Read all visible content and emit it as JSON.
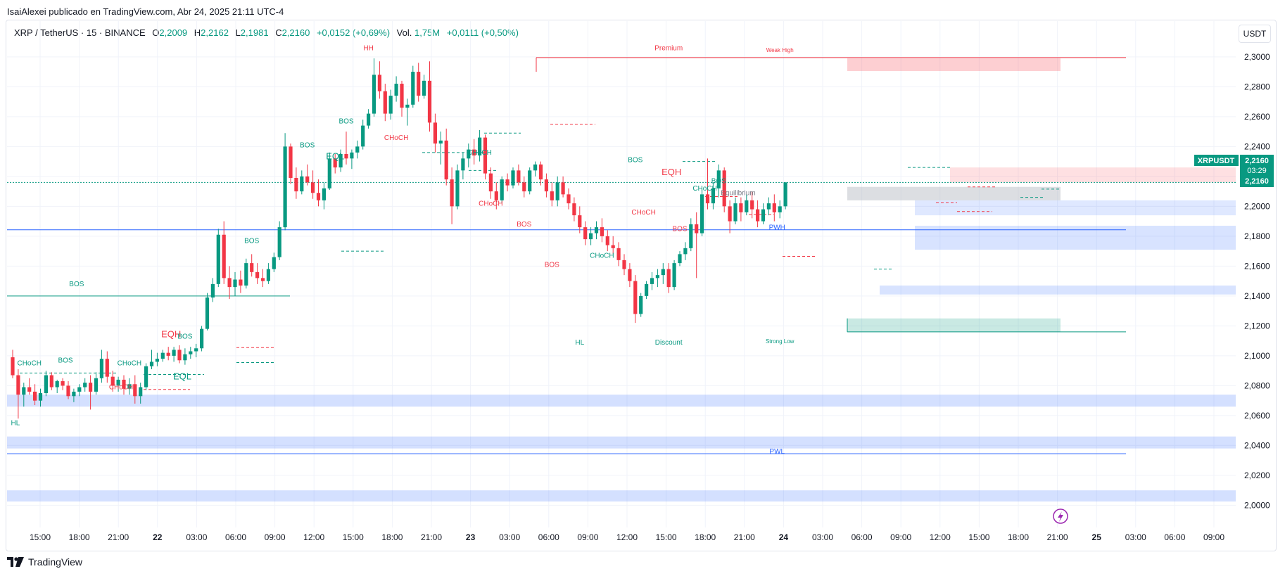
{
  "header": {
    "title": "IsaiAlexei publicado en TradingView.com, Abr 24, 2025 21:11 UTC-4"
  },
  "legend": {
    "symbol": "XRP / TetherUS · 15 · BINANCE",
    "o_label": "O",
    "o": "2,2009",
    "h_label": "H",
    "h": "2,2162",
    "l_label": "L",
    "l": "2,1981",
    "c_label": "C",
    "c": "2,2160",
    "change": "+0,0152 (+0,69%)",
    "vol_label": "Vol.",
    "vol": "1,75M",
    "vol_change": "+0,0111 (+0,50%)"
  },
  "currency_button": "USDT",
  "price_tag": {
    "symbol": "XRPUSDT",
    "price": "2,2160",
    "countdown": "03:29",
    "price2": "2,2160"
  },
  "brand": "TradingView",
  "colors": {
    "up": "#089981",
    "down": "#f23645",
    "blue": "#2962ff",
    "grid": "#f0f3fa"
  },
  "chart_data": {
    "type": "candlestick",
    "y_ticks": [
      "2,3000",
      "2,2800",
      "2,2600",
      "2,2400",
      "2,2200",
      "2,2000",
      "2,1800",
      "2,1600",
      "2,1400",
      "2,1200",
      "2,1000",
      "2,0800",
      "2,0600",
      "2,0400",
      "2,0200",
      "2,0000"
    ],
    "y_tick_values": [
      2.3,
      2.28,
      2.26,
      2.24,
      2.22,
      2.2,
      2.18,
      2.16,
      2.14,
      2.12,
      2.1,
      2.08,
      2.06,
      2.04,
      2.02,
      2.0
    ],
    "ylim": [
      1.9875,
      2.3145
    ],
    "x_ticks": [
      "15:00",
      "18:00",
      "21:00",
      "22",
      "03:00",
      "06:00",
      "09:00",
      "12:00",
      "15:00",
      "18:00",
      "21:00",
      "23",
      "03:00",
      "06:00",
      "09:00",
      "12:00",
      "15:00",
      "18:00",
      "21:00",
      "24",
      "03:00",
      "06:00",
      "09:00",
      "12:00",
      "15:00",
      "18:00",
      "21:00",
      "25",
      "03:00",
      "06:00",
      "09:00"
    ],
    "x_tick_bold": [
      "22",
      "23",
      "24",
      "25"
    ],
    "annotations": [
      {
        "text": "HH",
        "color": "down",
        "xi": 64,
        "y": 2.3045
      },
      {
        "text": "Premium",
        "color": "down",
        "xi": 118,
        "y": 2.3045
      },
      {
        "text": "Weak High",
        "color": "down",
        "xi": 138,
        "y": 2.3032,
        "small": true
      },
      {
        "text": "BOS",
        "color": "up",
        "xi": 11.5,
        "y": 2.1465
      },
      {
        "text": "CHoCH",
        "color": "up",
        "xi": 3,
        "y": 2.0935
      },
      {
        "text": "BOS",
        "color": "up",
        "xi": 9.5,
        "y": 2.0955
      },
      {
        "text": "CHoCH",
        "color": "up",
        "xi": 21,
        "y": 2.0935
      },
      {
        "text": "CHoCH",
        "color": "down",
        "xi": 19.5,
        "y": 2.0775
      },
      {
        "text": "EQH",
        "color": "down",
        "xi": 28.5,
        "y": 2.1125,
        "big": true
      },
      {
        "text": "BOS",
        "color": "up",
        "xi": 31,
        "y": 2.1115
      },
      {
        "text": "EQL",
        "color": "up",
        "xi": 30.5,
        "y": 2.0842,
        "big": true
      },
      {
        "text": "BOS",
        "color": "up",
        "xi": 43,
        "y": 2.1755
      },
      {
        "text": "BOS",
        "color": "up",
        "xi": 53,
        "y": 2.2395
      },
      {
        "text": "BOS",
        "color": "up",
        "xi": 60,
        "y": 2.2555
      },
      {
        "text": "EQL",
        "color": "up",
        "xi": 58,
        "y": 2.2315,
        "big": true
      },
      {
        "text": "CHoCH",
        "color": "down",
        "xi": 69,
        "y": 2.2445
      },
      {
        "text": "CHoCH",
        "color": "up",
        "xi": 84,
        "y": 2.2345
      },
      {
        "text": "CHoCH",
        "color": "down",
        "xi": 86,
        "y": 2.2005
      },
      {
        "text": "BOS",
        "color": "down",
        "xi": 92,
        "y": 2.1865
      },
      {
        "text": "BOS",
        "color": "down",
        "xi": 97,
        "y": 2.1595
      },
      {
        "text": "CHoCH",
        "color": "up",
        "xi": 106,
        "y": 2.1655
      },
      {
        "text": "HL",
        "color": "up",
        "xi": 102,
        "y": 2.1075
      },
      {
        "text": "Discount",
        "color": "up",
        "xi": 118,
        "y": 2.1075
      },
      {
        "text": "Strong Low",
        "color": "up",
        "xi": 138,
        "y": 2.1085,
        "small": true
      },
      {
        "text": "HL",
        "color": "up",
        "xi": 0.5,
        "y": 2.0535
      },
      {
        "text": "BOS",
        "color": "up",
        "xi": 112,
        "y": 2.2295
      },
      {
        "text": "EQH",
        "color": "down",
        "xi": 118.5,
        "y": 2.2208,
        "big": true
      },
      {
        "text": "CHoCH",
        "color": "down",
        "xi": 113.5,
        "y": 2.1945
      },
      {
        "text": "BOS",
        "color": "down",
        "xi": 120,
        "y": 2.1835
      },
      {
        "text": "CHoCH",
        "color": "up",
        "xi": 124.5,
        "y": 2.2105
      },
      {
        "text": "BOS",
        "color": "up",
        "xi": 127,
        "y": 2.2155
      },
      {
        "text": "Equilibrium",
        "color": "grey",
        "xi": 130.5,
        "y": 2.2075
      },
      {
        "text": "PWH",
        "color": "blue",
        "xi": 137.5,
        "y": 2.1845
      },
      {
        "text": "PWL",
        "color": "blue",
        "xi": 137.5,
        "y": 2.0345
      }
    ],
    "candles": [
      [
        2.099,
        2.104,
        2.085,
        2.087
      ],
      [
        2.087,
        2.091,
        2.058,
        2.074
      ],
      [
        2.074,
        2.082,
        2.066,
        2.079
      ],
      [
        2.079,
        2.085,
        2.074,
        2.076
      ],
      [
        2.076,
        2.081,
        2.067,
        2.07
      ],
      [
        2.07,
        2.078,
        2.066,
        2.075
      ],
      [
        2.075,
        2.09,
        2.073,
        2.087
      ],
      [
        2.087,
        2.089,
        2.077,
        2.079
      ],
      [
        2.079,
        2.084,
        2.075,
        2.083
      ],
      [
        2.083,
        2.085,
        2.077,
        2.08
      ],
      [
        2.08,
        2.083,
        2.071,
        2.073
      ],
      [
        2.073,
        2.078,
        2.069,
        2.076
      ],
      [
        2.076,
        2.081,
        2.073,
        2.079
      ],
      [
        2.079,
        2.085,
        2.076,
        2.082
      ],
      [
        2.082,
        2.087,
        2.064,
        2.076
      ],
      [
        2.076,
        2.089,
        2.074,
        2.085
      ],
      [
        2.085,
        2.104,
        2.082,
        2.098
      ],
      [
        2.098,
        2.103,
        2.082,
        2.086
      ],
      [
        2.086,
        2.09,
        2.076,
        2.08
      ],
      [
        2.08,
        2.086,
        2.076,
        2.084
      ],
      [
        2.084,
        2.087,
        2.074,
        2.078
      ],
      [
        2.078,
        2.085,
        2.074,
        2.081
      ],
      [
        2.081,
        2.087,
        2.068,
        2.073
      ],
      [
        2.073,
        2.082,
        2.068,
        2.079
      ],
      [
        2.079,
        2.095,
        2.077,
        2.093
      ],
      [
        2.093,
        2.104,
        2.091,
        2.096
      ],
      [
        2.096,
        2.102,
        2.093,
        2.098
      ],
      [
        2.098,
        2.104,
        2.096,
        2.102
      ],
      [
        2.102,
        2.106,
        2.097,
        2.1
      ],
      [
        2.1,
        2.106,
        2.096,
        2.104
      ],
      [
        2.104,
        2.107,
        2.095,
        2.097
      ],
      [
        2.097,
        2.105,
        2.094,
        2.101
      ],
      [
        2.101,
        2.106,
        2.098,
        2.103
      ],
      [
        2.103,
        2.108,
        2.099,
        2.105
      ],
      [
        2.105,
        2.12,
        2.103,
        2.118
      ],
      [
        2.118,
        2.142,
        2.117,
        2.139
      ],
      [
        2.139,
        2.152,
        2.136,
        2.148
      ],
      [
        2.148,
        2.185,
        2.146,
        2.181
      ],
      [
        2.181,
        2.19,
        2.148,
        2.152
      ],
      [
        2.152,
        2.16,
        2.138,
        2.146
      ],
      [
        2.146,
        2.156,
        2.14,
        2.151
      ],
      [
        2.151,
        2.157,
        2.142,
        2.147
      ],
      [
        2.147,
        2.165,
        2.145,
        2.162
      ],
      [
        2.162,
        2.168,
        2.153,
        2.156
      ],
      [
        2.156,
        2.162,
        2.148,
        2.152
      ],
      [
        2.152,
        2.158,
        2.146,
        2.15
      ],
      [
        2.15,
        2.162,
        2.148,
        2.158
      ],
      [
        2.158,
        2.169,
        2.156,
        2.166
      ],
      [
        2.166,
        2.19,
        2.164,
        2.186
      ],
      [
        2.186,
        2.249,
        2.184,
        2.24
      ],
      [
        2.24,
        2.242,
        2.215,
        2.219
      ],
      [
        2.219,
        2.226,
        2.205,
        2.21
      ],
      [
        2.21,
        2.224,
        2.208,
        2.22
      ],
      [
        2.22,
        2.228,
        2.214,
        2.216
      ],
      [
        2.216,
        2.224,
        2.205,
        2.209
      ],
      [
        2.209,
        2.218,
        2.2,
        2.204
      ],
      [
        2.204,
        2.216,
        2.198,
        2.212
      ],
      [
        2.212,
        2.236,
        2.211,
        2.232
      ],
      [
        2.232,
        2.235,
        2.222,
        2.226
      ],
      [
        2.226,
        2.238,
        2.223,
        2.235
      ],
      [
        2.235,
        2.25,
        2.228,
        2.232
      ],
      [
        2.232,
        2.238,
        2.225,
        2.236
      ],
      [
        2.236,
        2.244,
        2.232,
        2.24
      ],
      [
        2.24,
        2.258,
        2.238,
        2.254
      ],
      [
        2.254,
        2.265,
        2.252,
        2.262
      ],
      [
        2.262,
        2.299,
        2.26,
        2.288
      ],
      [
        2.288,
        2.297,
        2.272,
        2.277
      ],
      [
        2.277,
        2.282,
        2.257,
        2.262
      ],
      [
        2.262,
        2.278,
        2.258,
        2.274
      ],
      [
        2.274,
        2.287,
        2.27,
        2.282
      ],
      [
        2.282,
        2.284,
        2.26,
        2.266
      ],
      [
        2.266,
        2.272,
        2.254,
        2.268
      ],
      [
        2.268,
        2.294,
        2.266,
        2.29
      ],
      [
        2.29,
        2.296,
        2.27,
        2.274
      ],
      [
        2.274,
        2.288,
        2.272,
        2.284
      ],
      [
        2.284,
        2.297,
        2.25,
        2.256
      ],
      [
        2.256,
        2.262,
        2.236,
        2.242
      ],
      [
        2.242,
        2.25,
        2.228,
        2.244
      ],
      [
        2.244,
        2.252,
        2.214,
        2.218
      ],
      [
        2.218,
        2.226,
        2.188,
        2.2
      ],
      [
        2.2,
        2.228,
        2.198,
        2.224
      ],
      [
        2.224,
        2.236,
        2.218,
        2.232
      ],
      [
        2.232,
        2.242,
        2.226,
        2.238
      ],
      [
        2.238,
        2.245,
        2.228,
        2.234
      ],
      [
        2.234,
        2.251,
        2.23,
        2.246
      ],
      [
        2.246,
        2.248,
        2.218,
        2.222
      ],
      [
        2.222,
        2.226,
        2.205,
        2.21
      ],
      [
        2.21,
        2.216,
        2.198,
        2.204
      ],
      [
        2.204,
        2.22,
        2.202,
        2.218
      ],
      [
        2.218,
        2.222,
        2.21,
        2.214
      ],
      [
        2.214,
        2.226,
        2.212,
        2.224
      ],
      [
        2.224,
        2.228,
        2.214,
        2.216
      ],
      [
        2.216,
        2.22,
        2.206,
        2.21
      ],
      [
        2.21,
        2.226,
        2.208,
        2.224
      ],
      [
        2.224,
        2.23,
        2.22,
        2.228
      ],
      [
        2.228,
        2.23,
        2.214,
        2.218
      ],
      [
        2.218,
        2.222,
        2.206,
        2.21
      ],
      [
        2.21,
        2.216,
        2.2,
        2.204
      ],
      [
        2.204,
        2.22,
        2.2,
        2.216
      ],
      [
        2.216,
        2.22,
        2.206,
        2.208
      ],
      [
        2.208,
        2.212,
        2.198,
        2.202
      ],
      [
        2.202,
        2.206,
        2.19,
        2.194
      ],
      [
        2.194,
        2.2,
        2.182,
        2.186
      ],
      [
        2.186,
        2.19,
        2.174,
        2.178
      ],
      [
        2.178,
        2.186,
        2.174,
        2.182
      ],
      [
        2.182,
        2.19,
        2.178,
        2.186
      ],
      [
        2.186,
        2.192,
        2.176,
        2.18
      ],
      [
        2.18,
        2.184,
        2.17,
        2.174
      ],
      [
        2.174,
        2.18,
        2.168,
        2.172
      ],
      [
        2.172,
        2.176,
        2.16,
        2.164
      ],
      [
        2.164,
        2.168,
        2.154,
        2.158
      ],
      [
        2.158,
        2.162,
        2.146,
        2.15
      ],
      [
        2.15,
        2.154,
        2.122,
        2.128
      ],
      [
        2.128,
        2.142,
        2.126,
        2.14
      ],
      [
        2.14,
        2.15,
        2.138,
        2.148
      ],
      [
        2.148,
        2.156,
        2.144,
        2.152
      ],
      [
        2.152,
        2.158,
        2.146,
        2.154
      ],
      [
        2.154,
        2.162,
        2.148,
        2.158
      ],
      [
        2.158,
        2.162,
        2.142,
        2.146
      ],
      [
        2.146,
        2.164,
        2.144,
        2.162
      ],
      [
        2.162,
        2.17,
        2.16,
        2.168
      ],
      [
        2.168,
        2.176,
        2.164,
        2.172
      ],
      [
        2.172,
        2.192,
        2.17,
        2.188
      ],
      [
        2.188,
        2.196,
        2.152,
        2.182
      ],
      [
        2.182,
        2.212,
        2.18,
        2.208
      ],
      [
        2.208,
        2.232,
        2.198,
        2.202
      ],
      [
        2.202,
        2.216,
        2.198,
        2.212
      ],
      [
        2.212,
        2.228,
        2.206,
        2.224
      ],
      [
        2.224,
        2.226,
        2.196,
        2.2
      ],
      [
        2.2,
        2.204,
        2.182,
        2.19
      ],
      [
        2.19,
        2.206,
        2.188,
        2.202
      ],
      [
        2.202,
        2.206,
        2.19,
        2.196
      ],
      [
        2.196,
        2.208,
        2.194,
        2.204
      ],
      [
        2.204,
        2.21,
        2.192,
        2.198
      ],
      [
        2.198,
        2.204,
        2.186,
        2.19
      ],
      [
        2.19,
        2.202,
        2.188,
        2.198
      ],
      [
        2.198,
        2.206,
        2.194,
        2.202
      ],
      [
        2.202,
        2.208,
        2.19,
        2.196
      ],
      [
        2.196,
        2.204,
        2.192,
        2.2
      ],
      [
        2.2,
        2.216,
        2.198,
        2.216
      ]
    ]
  }
}
